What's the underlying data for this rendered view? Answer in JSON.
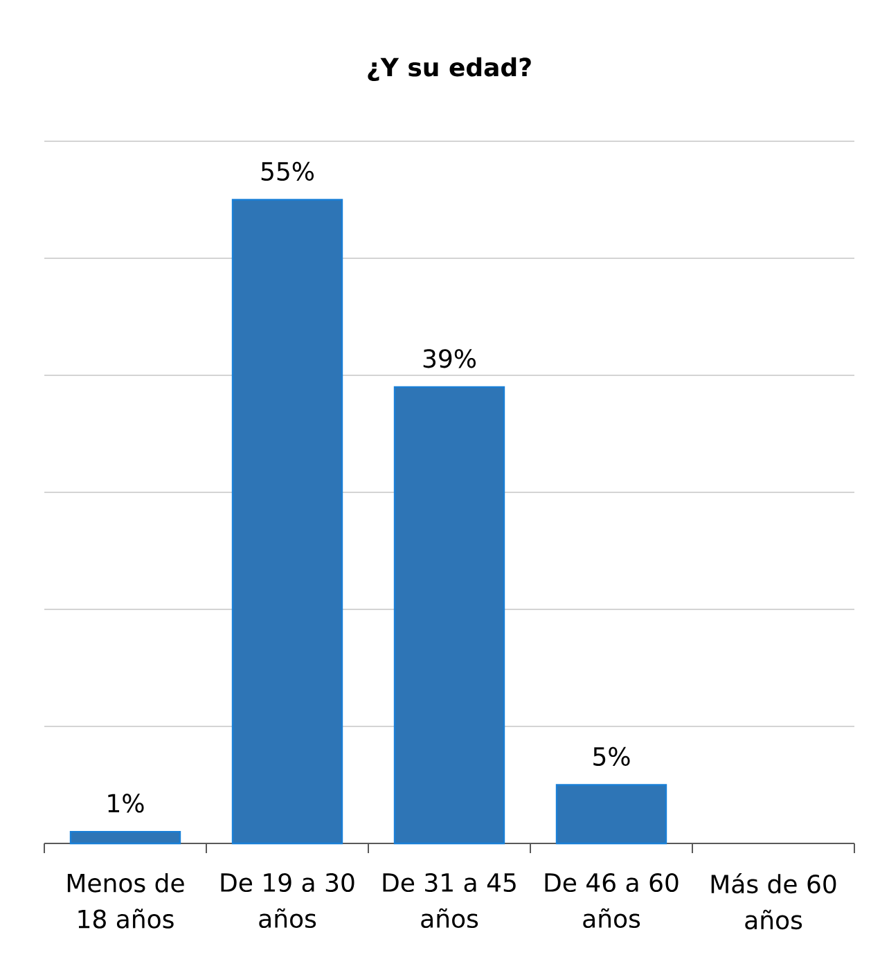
{
  "chart_data": {
    "type": "bar",
    "title": "¿Y su edad?",
    "categories": [
      "Menos de 18 años",
      "De 19 a 30 años",
      "De 31 a 45 años",
      "De 46 a 60 años",
      "Más de 60 años"
    ],
    "values": [
      1,
      55,
      39,
      5,
      null
    ],
    "value_labels": [
      "1%",
      "55%",
      "39%",
      "5%",
      null
    ],
    "color": "#2e75b6",
    "ylim": [
      0,
      60
    ],
    "yticks": [
      {
        "value": 0,
        "label": null
      },
      {
        "value": 10,
        "label": null
      },
      {
        "value": 20,
        "label": null
      },
      {
        "value": 30,
        "label": null
      },
      {
        "value": 40,
        "label": null
      },
      {
        "value": 50,
        "label": null
      },
      {
        "value": 60,
        "label": null
      }
    ],
    "grid": "y",
    "tick_labels": "x"
  }
}
